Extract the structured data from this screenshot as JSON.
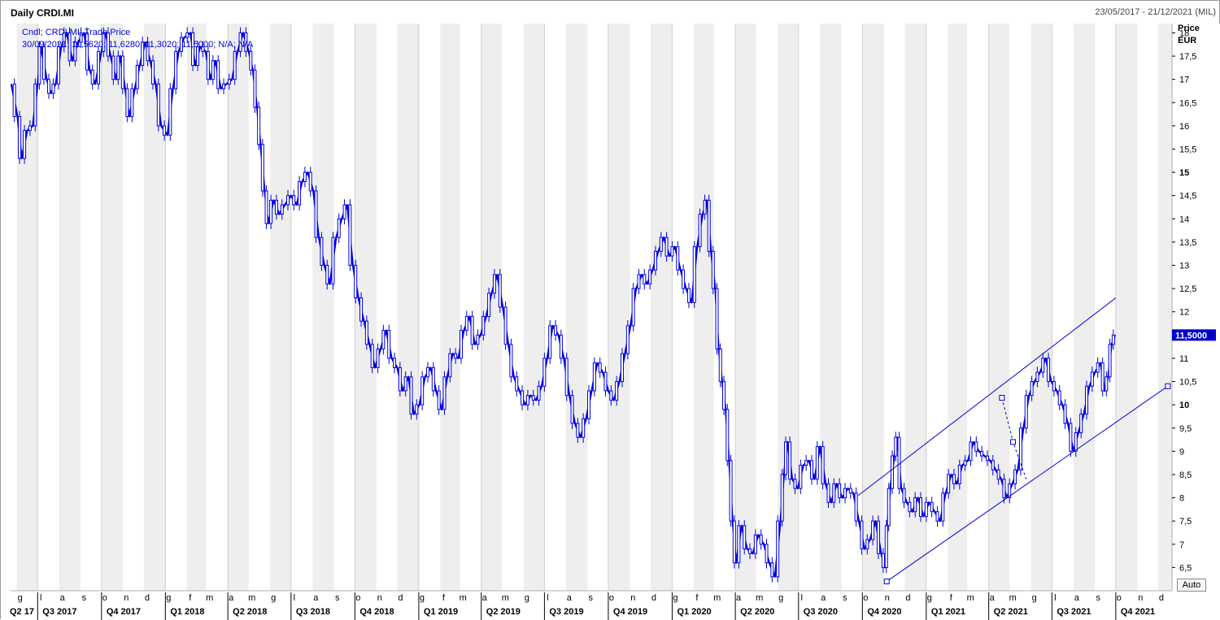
{
  "window": {
    "title": "Daily CRDI.MI",
    "date_range": "23/05/2017 - 21/12/2021 (MIL)"
  },
  "legend": {
    "line1": "Cndl; CRDI.MI; Trade Price",
    "line2": "30/09/2021; 11,5620; 11,6280; 11,3020; 11,5000; N/A; N/A"
  },
  "axis": {
    "y_title": "Price",
    "y_unit": "EUR",
    "last_price_label": "11,5000",
    "auto_button": "Auto"
  },
  "colors": {
    "series": "#0000e0",
    "shade": "#eeeeee",
    "grid_strong": "#cfcfcf",
    "last_price_bg": "#0000c8"
  },
  "chart_data": {
    "type": "candlestick",
    "title": "Daily CRDI.MI",
    "ylabel": "Price EUR",
    "ylim": [
      6.0,
      18.2
    ],
    "y_ticks": [
      "18",
      "17,5",
      "17",
      "16,5",
      "16",
      "15,5",
      "15",
      "14,5",
      "14",
      "13,5",
      "13",
      "12,5",
      "12",
      "11,5",
      "11",
      "10,5",
      "10",
      "9,5",
      "9",
      "8,5",
      "8",
      "7,5",
      "7",
      "6,5"
    ],
    "y_tick_values": [
      18,
      17.5,
      17,
      16.5,
      16,
      15.5,
      15,
      14.5,
      14,
      13.5,
      13,
      12.5,
      12,
      11.5,
      11,
      10.5,
      10,
      9.5,
      9,
      8.5,
      8,
      7.5,
      7,
      6.5
    ],
    "bold_y_ticks": [
      "15",
      "10"
    ],
    "x_range": [
      "2017-05-23",
      "2021-12-21"
    ],
    "month_labels": [
      {
        "date": "2017-06-01",
        "label": "g"
      },
      {
        "date": "2017-07-01",
        "label": "l"
      },
      {
        "date": "2017-08-01",
        "label": "a"
      },
      {
        "date": "2017-09-01",
        "label": "s"
      },
      {
        "date": "2017-10-01",
        "label": "o"
      },
      {
        "date": "2017-11-01",
        "label": "n"
      },
      {
        "date": "2017-12-01",
        "label": "d"
      },
      {
        "date": "2018-01-01",
        "label": "g"
      },
      {
        "date": "2018-02-01",
        "label": "f"
      },
      {
        "date": "2018-03-01",
        "label": "m"
      },
      {
        "date": "2018-04-01",
        "label": "a"
      },
      {
        "date": "2018-05-01",
        "label": "m"
      },
      {
        "date": "2018-06-01",
        "label": "g"
      },
      {
        "date": "2018-07-01",
        "label": "l"
      },
      {
        "date": "2018-08-01",
        "label": "a"
      },
      {
        "date": "2018-09-01",
        "label": "s"
      },
      {
        "date": "2018-10-01",
        "label": "o"
      },
      {
        "date": "2018-11-01",
        "label": "n"
      },
      {
        "date": "2018-12-01",
        "label": "d"
      },
      {
        "date": "2019-01-01",
        "label": "g"
      },
      {
        "date": "2019-02-01",
        "label": "f"
      },
      {
        "date": "2019-03-01",
        "label": "m"
      },
      {
        "date": "2019-04-01",
        "label": "a"
      },
      {
        "date": "2019-05-01",
        "label": "m"
      },
      {
        "date": "2019-06-01",
        "label": "g"
      },
      {
        "date": "2019-07-01",
        "label": "l"
      },
      {
        "date": "2019-08-01",
        "label": "a"
      },
      {
        "date": "2019-09-01",
        "label": "s"
      },
      {
        "date": "2019-10-01",
        "label": "o"
      },
      {
        "date": "2019-11-01",
        "label": "n"
      },
      {
        "date": "2019-12-01",
        "label": "d"
      },
      {
        "date": "2020-01-01",
        "label": "g"
      },
      {
        "date": "2020-02-01",
        "label": "f"
      },
      {
        "date": "2020-03-01",
        "label": "m"
      },
      {
        "date": "2020-04-01",
        "label": "a"
      },
      {
        "date": "2020-05-01",
        "label": "m"
      },
      {
        "date": "2020-06-01",
        "label": "g"
      },
      {
        "date": "2020-07-01",
        "label": "l"
      },
      {
        "date": "2020-08-01",
        "label": "a"
      },
      {
        "date": "2020-09-01",
        "label": "s"
      },
      {
        "date": "2020-10-01",
        "label": "o"
      },
      {
        "date": "2020-11-01",
        "label": "n"
      },
      {
        "date": "2020-12-01",
        "label": "d"
      },
      {
        "date": "2021-01-01",
        "label": "g"
      },
      {
        "date": "2021-02-01",
        "label": "f"
      },
      {
        "date": "2021-03-01",
        "label": "m"
      },
      {
        "date": "2021-04-01",
        "label": "a"
      },
      {
        "date": "2021-05-01",
        "label": "m"
      },
      {
        "date": "2021-06-01",
        "label": "g"
      },
      {
        "date": "2021-07-01",
        "label": "l"
      },
      {
        "date": "2021-08-01",
        "label": "a"
      },
      {
        "date": "2021-09-01",
        "label": "s"
      },
      {
        "date": "2021-10-01",
        "label": "o"
      },
      {
        "date": "2021-11-01",
        "label": "n"
      },
      {
        "date": "2021-12-01",
        "label": "d"
      }
    ],
    "quarter_labels": [
      {
        "date": "2017-05-23",
        "label": "Q2 17"
      },
      {
        "date": "2017-07-01",
        "label": "Q3 2017"
      },
      {
        "date": "2017-10-01",
        "label": "Q4 2017"
      },
      {
        "date": "2018-01-01",
        "label": "Q1 2018"
      },
      {
        "date": "2018-04-01",
        "label": "Q2 2018"
      },
      {
        "date": "2018-07-01",
        "label": "Q3 2018"
      },
      {
        "date": "2018-10-01",
        "label": "Q4 2018"
      },
      {
        "date": "2019-01-01",
        "label": "Q1 2019"
      },
      {
        "date": "2019-04-01",
        "label": "Q2 2019"
      },
      {
        "date": "2019-07-01",
        "label": "Q3 2019"
      },
      {
        "date": "2019-10-01",
        "label": "Q4 2019"
      },
      {
        "date": "2020-01-01",
        "label": "Q1 2020"
      },
      {
        "date": "2020-04-01",
        "label": "Q2 2020"
      },
      {
        "date": "2020-07-01",
        "label": "Q3 2020"
      },
      {
        "date": "2020-10-01",
        "label": "Q4 2020"
      },
      {
        "date": "2021-01-01",
        "label": "Q1 2021"
      },
      {
        "date": "2021-04-01",
        "label": "Q2 2021"
      },
      {
        "date": "2021-07-01",
        "label": "Q3 2021"
      },
      {
        "date": "2021-10-01",
        "label": "Q4 2021"
      }
    ],
    "price_path": [
      [
        "2017-05-24",
        16.9
      ],
      [
        "2017-06-02",
        16.2
      ],
      [
        "2017-06-08",
        15.3
      ],
      [
        "2017-06-16",
        15.9
      ],
      [
        "2017-06-24",
        16.0
      ],
      [
        "2017-07-01",
        16.9
      ],
      [
        "2017-07-06",
        17.7
      ],
      [
        "2017-07-14",
        17.0
      ],
      [
        "2017-07-20",
        16.7
      ],
      [
        "2017-07-27",
        16.9
      ],
      [
        "2017-08-04",
        17.7
      ],
      [
        "2017-08-12",
        18.0
      ],
      [
        "2017-08-20",
        17.4
      ],
      [
        "2017-08-28",
        17.8
      ],
      [
        "2017-09-06",
        18.0
      ],
      [
        "2017-09-14",
        17.2
      ],
      [
        "2017-09-22",
        16.9
      ],
      [
        "2017-10-01",
        17.6
      ],
      [
        "2017-10-07",
        18.0
      ],
      [
        "2017-10-14",
        17.5
      ],
      [
        "2017-10-22",
        17.0
      ],
      [
        "2017-10-28",
        17.5
      ],
      [
        "2017-11-04",
        16.8
      ],
      [
        "2017-11-10",
        16.2
      ],
      [
        "2017-11-18",
        16.8
      ],
      [
        "2017-11-25",
        17.3
      ],
      [
        "2017-12-03",
        17.8
      ],
      [
        "2017-12-10",
        17.4
      ],
      [
        "2017-12-18",
        16.9
      ],
      [
        "2017-12-26",
        16.0
      ],
      [
        "2018-01-04",
        15.8
      ],
      [
        "2018-01-12",
        16.8
      ],
      [
        "2018-01-20",
        17.6
      ],
      [
        "2018-01-28",
        17.9
      ],
      [
        "2018-02-06",
        18.0
      ],
      [
        "2018-02-13",
        17.3
      ],
      [
        "2018-02-20",
        17.7
      ],
      [
        "2018-02-28",
        17.6
      ],
      [
        "2018-03-07",
        17.0
      ],
      [
        "2018-03-14",
        17.4
      ],
      [
        "2018-03-22",
        16.8
      ],
      [
        "2018-03-30",
        16.9
      ],
      [
        "2018-04-07",
        17.0
      ],
      [
        "2018-04-15",
        17.6
      ],
      [
        "2018-04-23",
        18.0
      ],
      [
        "2018-05-01",
        17.6
      ],
      [
        "2018-05-07",
        17.2
      ],
      [
        "2018-05-13",
        16.4
      ],
      [
        "2018-05-18",
        15.6
      ],
      [
        "2018-05-24",
        14.6
      ],
      [
        "2018-05-29",
        13.9
      ],
      [
        "2018-06-06",
        14.4
      ],
      [
        "2018-06-14",
        14.1
      ],
      [
        "2018-06-22",
        14.3
      ],
      [
        "2018-07-01",
        14.5
      ],
      [
        "2018-07-09",
        14.3
      ],
      [
        "2018-07-17",
        14.8
      ],
      [
        "2018-07-25",
        15.0
      ],
      [
        "2018-08-02",
        14.6
      ],
      [
        "2018-08-10",
        13.6
      ],
      [
        "2018-08-18",
        13.0
      ],
      [
        "2018-08-26",
        12.6
      ],
      [
        "2018-09-04",
        13.6
      ],
      [
        "2018-09-12",
        14.0
      ],
      [
        "2018-09-20",
        14.3
      ],
      [
        "2018-09-28",
        13.0
      ],
      [
        "2018-10-06",
        12.3
      ],
      [
        "2018-10-14",
        11.8
      ],
      [
        "2018-10-22",
        11.3
      ],
      [
        "2018-10-30",
        10.8
      ],
      [
        "2018-11-07",
        11.2
      ],
      [
        "2018-11-15",
        11.6
      ],
      [
        "2018-11-23",
        11.0
      ],
      [
        "2018-12-01",
        10.8
      ],
      [
        "2018-12-09",
        10.3
      ],
      [
        "2018-12-17",
        10.6
      ],
      [
        "2018-12-25",
        9.8
      ],
      [
        "2019-01-02",
        10.0
      ],
      [
        "2019-01-10",
        10.6
      ],
      [
        "2019-01-18",
        10.8
      ],
      [
        "2019-01-26",
        10.3
      ],
      [
        "2019-02-03",
        9.9
      ],
      [
        "2019-02-11",
        10.6
      ],
      [
        "2019-02-19",
        11.1
      ],
      [
        "2019-02-27",
        11.0
      ],
      [
        "2019-03-07",
        11.6
      ],
      [
        "2019-03-15",
        11.9
      ],
      [
        "2019-03-23",
        11.3
      ],
      [
        "2019-03-31",
        11.5
      ],
      [
        "2019-04-08",
        11.9
      ],
      [
        "2019-04-16",
        12.4
      ],
      [
        "2019-04-24",
        12.8
      ],
      [
        "2019-05-02",
        12.1
      ],
      [
        "2019-05-10",
        11.3
      ],
      [
        "2019-05-18",
        10.6
      ],
      [
        "2019-05-26",
        10.3
      ],
      [
        "2019-06-03",
        10.0
      ],
      [
        "2019-06-11",
        10.2
      ],
      [
        "2019-06-19",
        10.1
      ],
      [
        "2019-06-27",
        10.4
      ],
      [
        "2019-07-05",
        11.0
      ],
      [
        "2019-07-13",
        11.7
      ],
      [
        "2019-07-21",
        11.5
      ],
      [
        "2019-07-29",
        11.0
      ],
      [
        "2019-08-06",
        10.2
      ],
      [
        "2019-08-14",
        9.6
      ],
      [
        "2019-08-22",
        9.3
      ],
      [
        "2019-08-30",
        9.7
      ],
      [
        "2019-09-07",
        10.3
      ],
      [
        "2019-09-15",
        10.9
      ],
      [
        "2019-09-23",
        10.7
      ],
      [
        "2019-10-01",
        10.3
      ],
      [
        "2019-10-09",
        10.1
      ],
      [
        "2019-10-17",
        10.5
      ],
      [
        "2019-10-25",
        11.1
      ],
      [
        "2019-11-02",
        11.7
      ],
      [
        "2019-11-10",
        12.5
      ],
      [
        "2019-11-18",
        12.8
      ],
      [
        "2019-11-26",
        12.6
      ],
      [
        "2019-12-04",
        12.9
      ],
      [
        "2019-12-12",
        13.3
      ],
      [
        "2019-12-20",
        13.6
      ],
      [
        "2019-12-28",
        13.2
      ],
      [
        "2020-01-05",
        13.4
      ],
      [
        "2020-01-13",
        12.9
      ],
      [
        "2020-01-21",
        12.5
      ],
      [
        "2020-01-29",
        12.2
      ],
      [
        "2020-02-06",
        13.4
      ],
      [
        "2020-02-14",
        14.1
      ],
      [
        "2020-02-20",
        14.4
      ],
      [
        "2020-02-26",
        13.3
      ],
      [
        "2020-03-03",
        12.5
      ],
      [
        "2020-03-08",
        11.2
      ],
      [
        "2020-03-13",
        10.5
      ],
      [
        "2020-03-18",
        9.9
      ],
      [
        "2020-03-23",
        8.8
      ],
      [
        "2020-03-28",
        7.5
      ],
      [
        "2020-04-02",
        6.6
      ],
      [
        "2020-04-10",
        7.4
      ],
      [
        "2020-04-18",
        6.9
      ],
      [
        "2020-04-26",
        6.8
      ],
      [
        "2020-05-04",
        7.2
      ],
      [
        "2020-05-12",
        7.0
      ],
      [
        "2020-05-20",
        6.6
      ],
      [
        "2020-05-28",
        6.3
      ],
      [
        "2020-06-05",
        7.5
      ],
      [
        "2020-06-10",
        8.5
      ],
      [
        "2020-06-15",
        9.2
      ],
      [
        "2020-06-22",
        8.4
      ],
      [
        "2020-06-30",
        8.2
      ],
      [
        "2020-07-08",
        8.7
      ],
      [
        "2020-07-16",
        8.8
      ],
      [
        "2020-07-24",
        8.4
      ],
      [
        "2020-08-01",
        9.1
      ],
      [
        "2020-08-09",
        8.3
      ],
      [
        "2020-08-17",
        7.9
      ],
      [
        "2020-08-25",
        8.3
      ],
      [
        "2020-09-02",
        8.0
      ],
      [
        "2020-09-10",
        8.2
      ],
      [
        "2020-09-18",
        8.1
      ],
      [
        "2020-09-26",
        7.5
      ],
      [
        "2020-10-04",
        6.9
      ],
      [
        "2020-10-12",
        7.1
      ],
      [
        "2020-10-20",
        7.5
      ],
      [
        "2020-10-28",
        6.8
      ],
      [
        "2020-11-03",
        6.5
      ],
      [
        "2020-11-06",
        7.4
      ],
      [
        "2020-11-10",
        8.2
      ],
      [
        "2020-11-16",
        8.9
      ],
      [
        "2020-11-20",
        9.3
      ],
      [
        "2020-11-26",
        8.2
      ],
      [
        "2020-12-04",
        7.9
      ],
      [
        "2020-12-12",
        7.7
      ],
      [
        "2020-12-20",
        8.0
      ],
      [
        "2020-12-28",
        7.6
      ],
      [
        "2021-01-05",
        7.9
      ],
      [
        "2021-01-13",
        7.7
      ],
      [
        "2021-01-21",
        7.5
      ],
      [
        "2021-01-29",
        8.1
      ],
      [
        "2021-02-06",
        8.5
      ],
      [
        "2021-02-14",
        8.3
      ],
      [
        "2021-02-22",
        8.7
      ],
      [
        "2021-03-02",
        8.8
      ],
      [
        "2021-03-10",
        9.2
      ],
      [
        "2021-03-18",
        9.0
      ],
      [
        "2021-03-26",
        8.9
      ],
      [
        "2021-04-03",
        8.8
      ],
      [
        "2021-04-11",
        8.6
      ],
      [
        "2021-04-19",
        8.4
      ],
      [
        "2021-04-27",
        8.0
      ],
      [
        "2021-05-05",
        8.3
      ],
      [
        "2021-05-13",
        8.6
      ],
      [
        "2021-05-21",
        9.5
      ],
      [
        "2021-05-29",
        10.2
      ],
      [
        "2021-06-06",
        10.5
      ],
      [
        "2021-06-14",
        10.7
      ],
      [
        "2021-06-22",
        11.0
      ],
      [
        "2021-06-30",
        10.5
      ],
      [
        "2021-07-08",
        10.3
      ],
      [
        "2021-07-16",
        10.0
      ],
      [
        "2021-07-24",
        9.6
      ],
      [
        "2021-08-01",
        9.0
      ],
      [
        "2021-08-08",
        9.4
      ],
      [
        "2021-08-16",
        9.8
      ],
      [
        "2021-08-24",
        10.4
      ],
      [
        "2021-09-01",
        10.7
      ],
      [
        "2021-09-09",
        10.9
      ],
      [
        "2021-09-15",
        10.3
      ],
      [
        "2021-09-20",
        10.6
      ],
      [
        "2021-09-25",
        11.3
      ],
      [
        "2021-09-30",
        11.5
      ]
    ],
    "trend_channel": {
      "upper": [
        [
          "2020-09-25",
          8.05
        ],
        [
          "2021-10-01",
          12.3
        ]
      ],
      "lower": [
        [
          "2020-11-05",
          6.2
        ],
        [
          "2021-12-15",
          10.4
        ]
      ],
      "pitch_points": [
        [
          "2021-04-20",
          10.15
        ],
        [
          "2021-05-06",
          9.2
        ],
        [
          "2021-05-25",
          8.4
        ]
      ],
      "anchors": [
        [
          "2020-11-05",
          6.2
        ],
        [
          "2021-04-20",
          10.15
        ],
        [
          "2021-05-06",
          9.2
        ],
        [
          "2021-12-15",
          10.4
        ]
      ]
    },
    "last_price": 11.5
  }
}
